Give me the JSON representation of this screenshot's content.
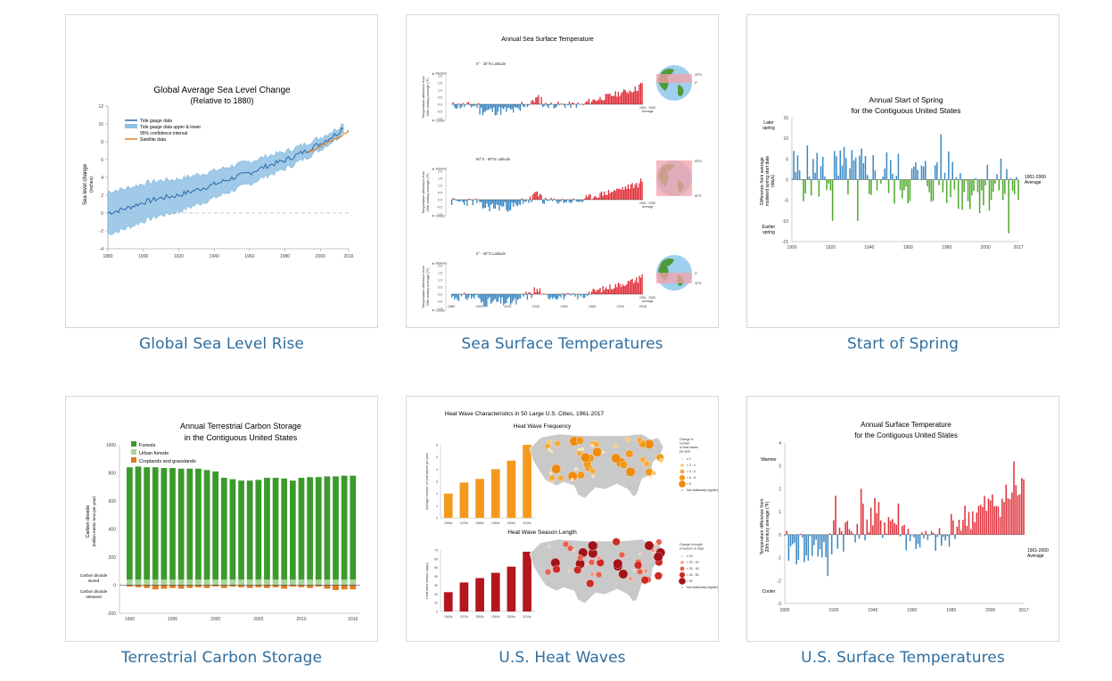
{
  "colors": {
    "link": "#2f6e9f",
    "warm": "#e0303a",
    "cool": "#3b89c4",
    "green": "#3c9a2c",
    "orange": "#e07a1f",
    "dark_red": "#b3161c",
    "band": "#8fc1e3",
    "map": "#c9c9c9"
  },
  "cards": [
    {
      "caption": "Global Sea Level Rise"
    },
    {
      "caption": "Sea Surface Temperatures"
    },
    {
      "caption": "Start of Spring"
    },
    {
      "caption": "Terrestrial Carbon Storage"
    },
    {
      "caption": "U.S. Heat Waves"
    },
    {
      "caption": "U.S. Surface Temperatures"
    }
  ],
  "sea_level": {
    "title": "Global Average Sea Level Change",
    "subtitle": "(Relative to 1880)",
    "ylabel": "Sea level change",
    "yunit": "(inches)",
    "legend": [
      "Tide gauge data",
      "Tide gauge data upper & lower",
      "95% confidence interval",
      "Satellite data"
    ]
  },
  "sst": {
    "title": "Annual Sea Surface Temperature",
    "panels": [
      {
        "band": "0° - 30°N Latitude",
        "lat1": "30°N",
        "lat2": "0°"
      },
      {
        "band": "60°S - 60°N Latitude",
        "lat1": "60°N",
        "lat2": "60°S"
      },
      {
        "band": "0° - 30°S Latitude",
        "lat1": "0°",
        "lat2": "30°S"
      }
    ],
    "warmer": "Warmer",
    "cooler": "Cooler",
    "ylabel1": "Temperature difference from",
    "ylabel2": "20th century average (°F)",
    "avg1": "1901 - 2000",
    "avg2": "Average"
  },
  "spring": {
    "title1": "Annual Start of Spring",
    "title2": "for the Contiguous United States",
    "later1": "Later",
    "later2": "spring",
    "earlier1": "Earlier",
    "earlier2": "spring",
    "ylabel1": "Difference from average",
    "ylabel2": "modeled spring start date",
    "ylabel3": "(days)",
    "avg1": "1901-2000",
    "avg2": "Average"
  },
  "carbon": {
    "title1": "Annual Terrestrial Carbon Storage",
    "title2": "in the Contiguous United States",
    "legend": [
      "Forests",
      "Urban forests",
      "Croplands and grasslands"
    ],
    "ylabel1": "Carbon dioxide",
    "ylabel2": "(million metric tons per year)",
    "stored1": "Carbon dioxide",
    "stored2": "stored",
    "released1": "Carbon dioxide",
    "released2": "released"
  },
  "heat": {
    "title": "Heat Wave Characteristics in 50 Large U.S. Cities, 1961-2017",
    "sub1": "Heat Wave Frequency",
    "sub2": "Heat Wave Season Length",
    "ylabel1": "Average number of heat waves per year",
    "ylabel2": "Heat wave season (days)",
    "leg1_title": [
      "Change in",
      "number",
      "of heat waves",
      "per year"
    ],
    "leg1": [
      "≤ 2",
      "> 2 - 4",
      "> 4 - 6",
      "> 6 - 8",
      "> 8",
      "Not statistically significant"
    ],
    "leg2_title": [
      "Change in length",
      "of season, in days"
    ],
    "leg2": [
      "≤ 20",
      "> 20 - 30",
      "> 30 - 40",
      "> 40 - 50",
      "> 50",
      "Not statistically significant"
    ]
  },
  "surface": {
    "title1": "Annual Surface Temperature",
    "title2": "for the Contiguous United States",
    "warmer": "Warmer",
    "cooler": "Cooler",
    "ylabel1": "Temperature difference from",
    "ylabel2": "20th century average (°F)",
    "avg1": "1901-2000",
    "avg2": "Average"
  },
  "chart_data": [
    {
      "type": "line",
      "title": "Global Average Sea Level Change",
      "ylabel": "Sea level change (inches)",
      "xlim": [
        1880,
        2016
      ],
      "ylim": [
        -4,
        12
      ],
      "x_ticks": [
        1880,
        1900,
        1920,
        1940,
        1960,
        1980,
        2000,
        2016
      ],
      "y_ticks": [
        -4,
        -2,
        0,
        2,
        4,
        6,
        8,
        10,
        12
      ],
      "series": [
        {
          "name": "Tide gauge data",
          "x": [
            1880,
            1890,
            1900,
            1910,
            1920,
            1930,
            1940,
            1950,
            1960,
            1970,
            1980,
            1990,
            2000,
            2010,
            2013
          ],
          "y": [
            0,
            0.5,
            1.2,
            1.7,
            2.0,
            2.6,
            3.2,
            3.9,
            4.5,
            5.3,
            5.9,
            6.8,
            7.8,
            9.0,
            9.7
          ]
        },
        {
          "name": "Satellite data",
          "x": [
            1993,
            1998,
            2003,
            2008,
            2013,
            2016
          ],
          "y": [
            6.8,
            7.2,
            7.8,
            8.3,
            8.8,
            9.2
          ]
        }
      ]
    },
    {
      "type": "bar",
      "title": "Annual Sea Surface Temperature",
      "x_ticks": [
        1880,
        1900,
        1920,
        1940,
        1960,
        1980,
        2000,
        2016
      ],
      "y_ticks": [
        -1.0,
        -0.5,
        0.0,
        0.5,
        1.0,
        1.5,
        2.0
      ],
      "series": [
        {
          "name": "0° - 30°N Latitude",
          "x": [
            1880,
            2016
          ],
          "values": [
            -0.2,
            1.6
          ]
        },
        {
          "name": "60°S - 60°N Latitude",
          "x": [
            1880,
            2016
          ],
          "values": [
            -0.2,
            1.3
          ]
        },
        {
          "name": "0° - 30°S Latitude",
          "x": [
            1880,
            2016
          ],
          "values": [
            -0.3,
            1.5
          ]
        }
      ]
    },
    {
      "type": "bar",
      "title": "Annual Start of Spring for the Contiguous United States",
      "xlim": [
        1900,
        2017
      ],
      "ylim": [
        -15,
        15
      ],
      "x_ticks": [
        1900,
        1920,
        1940,
        1960,
        1980,
        2000,
        2017
      ],
      "y_ticks": [
        -15,
        -10,
        -5,
        0,
        5,
        10,
        15
      ]
    },
    {
      "type": "bar",
      "title": "Annual Terrestrial Carbon Storage in the Contiguous United States",
      "ylim": [
        -200,
        1000
      ],
      "x_ticks": [
        1990,
        1995,
        2000,
        2005,
        2010,
        2016
      ],
      "y_ticks": [
        -200,
        0,
        200,
        400,
        600,
        800,
        1000
      ],
      "categories": [
        1990,
        1991,
        1992,
        1993,
        1994,
        1995,
        1996,
        1997,
        1998,
        1999,
        2000,
        2001,
        2002,
        2003,
        2004,
        2005,
        2006,
        2007,
        2008,
        2009,
        2010,
        2011,
        2012,
        2013,
        2014,
        2015,
        2016
      ],
      "series": [
        {
          "name": "Forests",
          "values": [
            800,
            805,
            800,
            800,
            795,
            795,
            790,
            790,
            790,
            780,
            770,
            725,
            715,
            705,
            705,
            710,
            725,
            725,
            720,
            705,
            725,
            730,
            730,
            735,
            735,
            740,
            740
          ]
        },
        {
          "name": "Urban forests",
          "values": [
            40,
            40,
            40,
            40,
            40,
            40,
            40,
            40,
            40,
            40,
            40,
            40,
            40,
            40,
            40,
            40,
            40,
            40,
            40,
            40,
            40,
            40,
            40,
            40,
            40,
            40,
            40
          ]
        },
        {
          "name": "Croplands and grasslands",
          "values": [
            -10,
            -15,
            -20,
            -30,
            -25,
            -20,
            -25,
            -20,
            -15,
            -20,
            -10,
            -20,
            -10,
            -15,
            -20,
            -15,
            -20,
            -15,
            -25,
            -10,
            -15,
            -20,
            -10,
            -25,
            -35,
            -30,
            -30
          ]
        }
      ]
    },
    {
      "type": "bar",
      "title": "Heat Wave Frequency",
      "categories": [
        "1960s",
        "1970s",
        "1980s",
        "1990s",
        "2000s",
        "2010s"
      ],
      "values": [
        2.0,
        2.9,
        3.2,
        4.0,
        4.7,
        6.0
      ],
      "ylim": [
        0,
        6
      ]
    },
    {
      "type": "bar",
      "title": "Heat Wave Season Length",
      "categories": [
        "1960s",
        "1970s",
        "1980s",
        "1990s",
        "2000s",
        "2010s"
      ],
      "values": [
        22,
        33,
        38,
        44,
        51,
        68
      ],
      "ylim": [
        0,
        70
      ]
    },
    {
      "type": "bar",
      "title": "Annual Surface Temperature for the Contiguous United States",
      "xlim": [
        1895,
        2017
      ],
      "ylim": [
        -3,
        4
      ],
      "x_ticks": [
        1895,
        1920,
        1940,
        1960,
        1980,
        2000,
        2017
      ],
      "y_ticks": [
        -3,
        -2,
        -1,
        0,
        1,
        2,
        3,
        4
      ]
    }
  ]
}
